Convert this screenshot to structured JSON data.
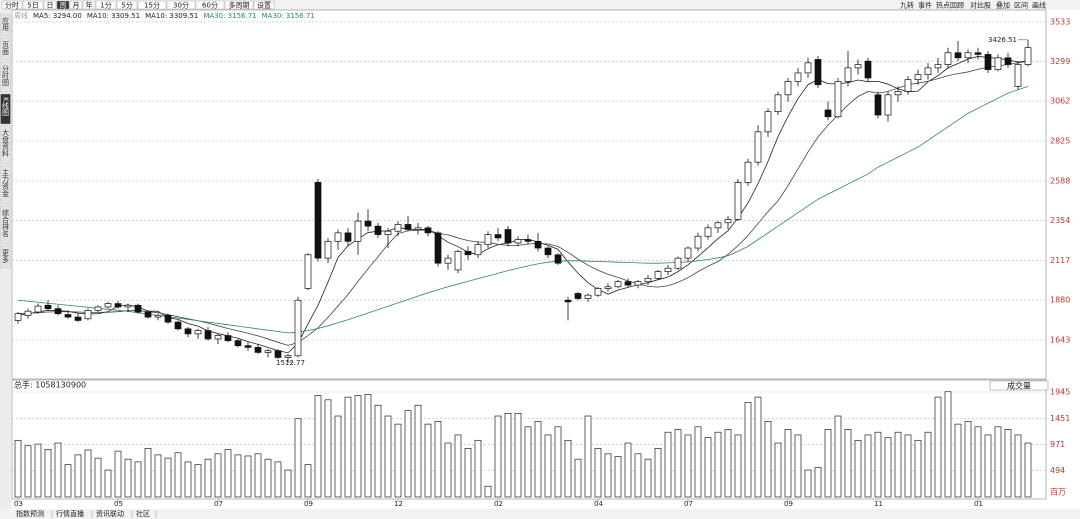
{
  "ui": {
    "toolbar": [
      "分时",
      "5日",
      "日",
      "周",
      "月",
      "年",
      "1分",
      "5分",
      "15分",
      "30分",
      "60分",
      "多周期",
      "设置"
    ],
    "toolbar_active": "周",
    "right_tools": [
      "九转",
      "事件",
      "热点回顾",
      "对比股",
      "叠加",
      "区间",
      "画线"
    ],
    "sidebar": [
      "应用",
      "页面",
      "分时图",
      "K线图",
      "大盘资料",
      "主力资金",
      "综合排名",
      "更多"
    ],
    "sidebar_active": "K线图",
    "bottom_tabs": [
      "指数预测",
      "行情直播",
      "资讯联动",
      "社区"
    ]
  },
  "chart_data": [
    {
      "type": "candlestick",
      "legend": [
        {
          "text": "周线",
          "color": "#999999"
        },
        {
          "text": "MA5: 3294.00",
          "color": "#222222"
        },
        {
          "text": "MA10: 3309.51",
          "color": "#222222"
        },
        {
          "text": "MA10: 3309.51",
          "color": "#222222"
        },
        {
          "text": "MA30: 3156.71",
          "color": "#2e8b57"
        },
        {
          "text": "MA30: 3156.71",
          "color": "#2e8b57"
        }
      ],
      "up_color": "#ffffff",
      "down_color": "#111111",
      "ylim": [
        1418,
        3592
      ],
      "yticks": [
        1643,
        1880,
        2117,
        2354,
        2588,
        2825,
        3062,
        3299,
        3533
      ],
      "grid": true,
      "values": [
        [
          1760,
          1810,
          1740,
          1800
        ],
        [
          1790,
          1830,
          1770,
          1815
        ],
        [
          1810,
          1860,
          1800,
          1845
        ],
        [
          1850,
          1880,
          1820,
          1830
        ],
        [
          1830,
          1850,
          1790,
          1800
        ],
        [
          1795,
          1820,
          1770,
          1780
        ],
        [
          1780,
          1800,
          1750,
          1760
        ],
        [
          1770,
          1830,
          1760,
          1820
        ],
        [
          1820,
          1850,
          1810,
          1840
        ],
        [
          1840,
          1870,
          1830,
          1860
        ],
        [
          1860,
          1875,
          1830,
          1840
        ],
        [
          1840,
          1860,
          1810,
          1850
        ],
        [
          1850,
          1860,
          1800,
          1810
        ],
        [
          1810,
          1820,
          1770,
          1780
        ],
        [
          1780,
          1800,
          1760,
          1790
        ],
        [
          1790,
          1800,
          1740,
          1750
        ],
        [
          1750,
          1760,
          1700,
          1710
        ],
        [
          1710,
          1720,
          1660,
          1680
        ],
        [
          1680,
          1710,
          1650,
          1700
        ],
        [
          1700,
          1720,
          1640,
          1650
        ],
        [
          1650,
          1680,
          1620,
          1670
        ],
        [
          1670,
          1690,
          1630,
          1640
        ],
        [
          1640,
          1650,
          1600,
          1610
        ],
        [
          1610,
          1630,
          1580,
          1600
        ],
        [
          1600,
          1620,
          1560,
          1570
        ],
        [
          1570,
          1590,
          1540,
          1580
        ],
        [
          1580,
          1590,
          1530,
          1540
        ],
        [
          1540,
          1560,
          1512.77,
          1550
        ],
        [
          1550,
          1900,
          1540,
          1880
        ],
        [
          1950,
          2160,
          1940,
          2150
        ],
        [
          2580,
          2600,
          2110,
          2130
        ],
        [
          2130,
          2250,
          2100,
          2230
        ],
        [
          2230,
          2300,
          2180,
          2280
        ],
        [
          2280,
          2310,
          2200,
          2230
        ],
        [
          2230,
          2400,
          2150,
          2350
        ],
        [
          2350,
          2420,
          2290,
          2320
        ],
        [
          2320,
          2340,
          2250,
          2270
        ],
        [
          2270,
          2310,
          2190,
          2290
        ],
        [
          2290,
          2350,
          2260,
          2330
        ],
        [
          2330,
          2380,
          2290,
          2300
        ],
        [
          2300,
          2340,
          2270,
          2310
        ],
        [
          2310,
          2320,
          2260,
          2280
        ],
        [
          2280,
          2290,
          2080,
          2100
        ],
        [
          2100,
          2150,
          2060,
          2130
        ],
        [
          2060,
          2180,
          2040,
          2170
        ],
        [
          2170,
          2200,
          2120,
          2150
        ],
        [
          2150,
          2230,
          2130,
          2210
        ],
        [
          2210,
          2290,
          2190,
          2270
        ],
        [
          2270,
          2310,
          2230,
          2250
        ],
        [
          2300,
          2320,
          2200,
          2220
        ],
        [
          2220,
          2260,
          2200,
          2240
        ],
        [
          2240,
          2270,
          2210,
          2230
        ],
        [
          2230,
          2280,
          2170,
          2190
        ],
        [
          2190,
          2200,
          2130,
          2150
        ],
        [
          2150,
          2160,
          2090,
          2100
        ],
        [
          1880,
          1900,
          1760,
          1870
        ],
        [
          1920,
          1930,
          1880,
          1890
        ],
        [
          1890,
          1920,
          1870,
          1910
        ],
        [
          1910,
          1960,
          1900,
          1950
        ],
        [
          1950,
          1980,
          1930,
          1960
        ],
        [
          1960,
          2000,
          1950,
          1990
        ],
        [
          1990,
          2010,
          1960,
          1970
        ],
        [
          1970,
          2000,
          1950,
          1990
        ],
        [
          1990,
          2030,
          1970,
          2010
        ],
        [
          2010,
          2060,
          2000,
          2050
        ],
        [
          2050,
          2090,
          2030,
          2070
        ],
        [
          2070,
          2140,
          2060,
          2130
        ],
        [
          2130,
          2200,
          2110,
          2190
        ],
        [
          2190,
          2280,
          2170,
          2260
        ],
        [
          2260,
          2330,
          2240,
          2310
        ],
        [
          2310,
          2350,
          2280,
          2340
        ],
        [
          2340,
          2380,
          2300,
          2360
        ],
        [
          2360,
          2600,
          2350,
          2580
        ],
        [
          2580,
          2720,
          2560,
          2700
        ],
        [
          2700,
          2920,
          2680,
          2880
        ],
        [
          2880,
          3020,
          2850,
          3000
        ],
        [
          3000,
          3120,
          2980,
          3100
        ],
        [
          3100,
          3200,
          3060,
          3180
        ],
        [
          3180,
          3260,
          3150,
          3230
        ],
        [
          3230,
          3320,
          3200,
          3290
        ],
        [
          3310,
          3330,
          3140,
          3160
        ],
        [
          3010,
          3060,
          2950,
          2970
        ],
        [
          2970,
          3200,
          2960,
          3180
        ],
        [
          3180,
          3360,
          3150,
          3260
        ],
        [
          3260,
          3310,
          3220,
          3280
        ],
        [
          3300,
          3320,
          3180,
          3200
        ],
        [
          3100,
          3120,
          2960,
          2980
        ],
        [
          2980,
          3120,
          2940,
          3100
        ],
        [
          3100,
          3150,
          3060,
          3120
        ],
        [
          3120,
          3210,
          3100,
          3190
        ],
        [
          3190,
          3250,
          3160,
          3220
        ],
        [
          3220,
          3290,
          3190,
          3260
        ],
        [
          3260,
          3320,
          3230,
          3280
        ],
        [
          3280,
          3380,
          3260,
          3350
        ],
        [
          3350,
          3420,
          3300,
          3320
        ],
        [
          3320,
          3370,
          3290,
          3350
        ],
        [
          3350,
          3380,
          3310,
          3340
        ],
        [
          3340,
          3360,
          3230,
          3250
        ],
        [
          3250,
          3340,
          3240,
          3320
        ],
        [
          3320,
          3350,
          3260,
          3280
        ],
        [
          3150,
          3300,
          3130,
          3280
        ],
        [
          3280,
          3426.51,
          3270,
          3380
        ]
      ],
      "series": [
        {
          "color": "#222222",
          "values": [
            1790,
            1800,
            1810,
            1820,
            1818,
            1814,
            1803,
            1798,
            1800,
            1812,
            1844,
            1852,
            1840,
            1816,
            1814,
            1776,
            1766,
            1742,
            1726,
            1698,
            1682,
            1668,
            1654,
            1634,
            1618,
            1600,
            1580,
            1568,
            1624,
            1740,
            1850,
            1988,
            2134,
            2204,
            2244,
            2282,
            2290,
            2292,
            2312,
            2302,
            2300,
            2302,
            2264,
            2224,
            2198,
            2166,
            2152,
            2186,
            2210,
            2220,
            2238,
            2242,
            2226,
            2206,
            2182,
            2108,
            2040,
            1984,
            1944,
            1916,
            1940,
            1956,
            1972,
            1984,
            2002,
            2018,
            2050,
            2090,
            2140,
            2192,
            2246,
            2292,
            2370,
            2458,
            2572,
            2704,
            2852,
            2972,
            3078,
            3160,
            3192,
            3166,
            3166,
            3172,
            3188,
            3178,
            3180,
            3164,
            3136,
            3118,
            3122,
            3178,
            3214,
            3260,
            3286,
            3312,
            3328,
            3322,
            3316,
            3308,
            3294,
            3302
          ]
        },
        {
          "color": "#444444",
          "values": [
            1800,
            1802,
            1806,
            1810,
            1812,
            1812,
            1810,
            1808,
            1808,
            1809,
            1812,
            1818,
            1820,
            1812,
            1806,
            1794,
            1782,
            1770,
            1758,
            1744,
            1728,
            1712,
            1698,
            1684,
            1668,
            1650,
            1630,
            1612,
            1628,
            1670,
            1716,
            1778,
            1846,
            1914,
            1992,
            2066,
            2138,
            2212,
            2276,
            2292,
            2296,
            2296,
            2278,
            2268,
            2250,
            2234,
            2226,
            2224,
            2212,
            2206,
            2206,
            2214,
            2218,
            2214,
            2200,
            2164,
            2124,
            2088,
            2058,
            2034,
            2016,
            1994,
            1978,
            1962,
            1958,
            1966,
            1986,
            2014,
            2050,
            2082,
            2110,
            2152,
            2204,
            2264,
            2336,
            2406,
            2470,
            2560,
            2660,
            2760,
            2850,
            2920,
            2980,
            3040,
            3090,
            3120,
            3110,
            3120,
            3140,
            3160,
            3170,
            3180,
            3196,
            3214,
            3226,
            3236,
            3252,
            3264,
            3272,
            3280,
            3290,
            3300
          ]
        },
        {
          "color": "#2e8b57",
          "values": [
            1880,
            1874,
            1868,
            1862,
            1856,
            1850,
            1844,
            1838,
            1832,
            1826,
            1820,
            1814,
            1806,
            1798,
            1790,
            1782,
            1774,
            1766,
            1758,
            1750,
            1742,
            1734,
            1726,
            1718,
            1710,
            1702,
            1694,
            1686,
            1690,
            1700,
            1712,
            1728,
            1746,
            1764,
            1784,
            1804,
            1824,
            1844,
            1864,
            1884,
            1904,
            1924,
            1942,
            1960,
            1976,
            1992,
            2008,
            2024,
            2040,
            2056,
            2070,
            2084,
            2096,
            2106,
            2112,
            2114,
            2114,
            2112,
            2110,
            2108,
            2106,
            2104,
            2102,
            2100,
            2100,
            2102,
            2104,
            2108,
            2114,
            2122,
            2132,
            2144,
            2170,
            2200,
            2240,
            2280,
            2320,
            2360,
            2400,
            2440,
            2480,
            2510,
            2540,
            2570,
            2600,
            2630,
            2670,
            2700,
            2730,
            2760,
            2790,
            2830,
            2870,
            2910,
            2950,
            2990,
            3020,
            3050,
            3080,
            3110,
            3130,
            3150
          ]
        }
      ]
    },
    {
      "type": "bar",
      "title": "总手: 1058130900",
      "selector": "成交量",
      "unit": "百万",
      "color": "#ffffff",
      "edge_color": "#222222",
      "ylim": [
        0,
        2056
      ],
      "yticks": [
        494,
        971,
        1451,
        1945
      ],
      "grid": true,
      "categories": [
        "03",
        null,
        null,
        null,
        null,
        null,
        null,
        null,
        null,
        null,
        "05",
        null,
        null,
        null,
        null,
        null,
        null,
        null,
        null,
        null,
        "07",
        null,
        null,
        null,
        null,
        null,
        null,
        null,
        null,
        "09",
        null,
        null,
        null,
        null,
        null,
        null,
        null,
        null,
        "12",
        null,
        null,
        null,
        null,
        null,
        null,
        null,
        null,
        null,
        "02",
        null,
        null,
        null,
        null,
        null,
        null,
        null,
        null,
        null,
        "04",
        null,
        null,
        null,
        null,
        null,
        null,
        null,
        null,
        "07",
        null,
        null,
        null,
        null,
        null,
        null,
        null,
        null,
        null,
        "09",
        null,
        null,
        null,
        null,
        null,
        null,
        null,
        null,
        "11",
        null,
        null,
        null,
        null,
        null,
        null,
        null,
        null,
        null,
        "01",
        null,
        null,
        null,
        null,
        null
      ],
      "values": [
        1050,
        950,
        980,
        880,
        1000,
        600,
        780,
        870,
        720,
        500,
        850,
        700,
        650,
        900,
        780,
        720,
        820,
        650,
        600,
        700,
        800,
        880,
        780,
        760,
        800,
        700,
        650,
        500,
        1450,
        600,
        1880,
        1800,
        1500,
        1850,
        1880,
        1900,
        1700,
        1500,
        1350,
        1600,
        1700,
        1350,
        1400,
        1000,
        1150,
        900,
        1050,
        200,
        1500,
        1550,
        1550,
        1300,
        1400,
        1150,
        1300,
        1050,
        700,
        1500,
        900,
        800,
        750,
        1000,
        800,
        700,
        900,
        1200,
        1250,
        1150,
        1300,
        1100,
        1200,
        1250,
        1150,
        1750,
        1850,
        1400,
        1000,
        1250,
        1150,
        500,
        550,
        1250,
        1500,
        1250,
        1050,
        1150,
        1200,
        1100,
        1200,
        1150,
        1050,
        1200,
        1850,
        1950,
        1350,
        1400,
        1300,
        1150,
        1300,
        1250,
        1150,
        1000
      ]
    }
  ]
}
